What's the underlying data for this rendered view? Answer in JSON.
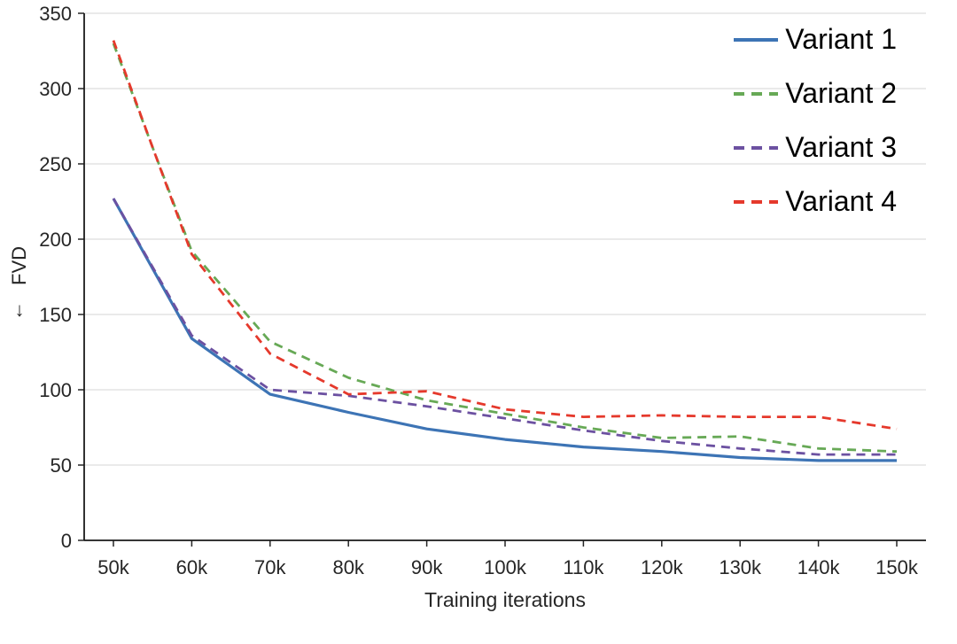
{
  "chart_data": {
    "type": "line",
    "xlabel": "Training iterations",
    "ylabel": "FVD",
    "ylabel_arrow": "↓",
    "ylim": [
      0,
      350
    ],
    "ytick_step": 50,
    "grid": true,
    "legend_position": "top-right",
    "x_labels": [
      "50k",
      "60k",
      "70k",
      "80k",
      "90k",
      "100k",
      "110k",
      "120k",
      "130k",
      "140k",
      "150k"
    ],
    "series": [
      {
        "name": "Variant 1",
        "color": "#3d74b5",
        "dash": "solid",
        "values": [
          227,
          134,
          97,
          85,
          74,
          67,
          62,
          59,
          55,
          53,
          53
        ]
      },
      {
        "name": "Variant 2",
        "color": "#67a956",
        "dash": "dashed",
        "values": [
          330,
          192,
          132,
          108,
          93,
          84,
          75,
          68,
          69,
          61,
          59
        ]
      },
      {
        "name": "Variant 3",
        "color": "#6c51a1",
        "dash": "dashed",
        "values": [
          227,
          136,
          100,
          96,
          89,
          81,
          73,
          66,
          61,
          57,
          57
        ]
      },
      {
        "name": "Variant 4",
        "color": "#e5392c",
        "dash": "dashed",
        "values": [
          332,
          190,
          124,
          97,
          99,
          87,
          82,
          83,
          82,
          82,
          74
        ]
      }
    ]
  }
}
